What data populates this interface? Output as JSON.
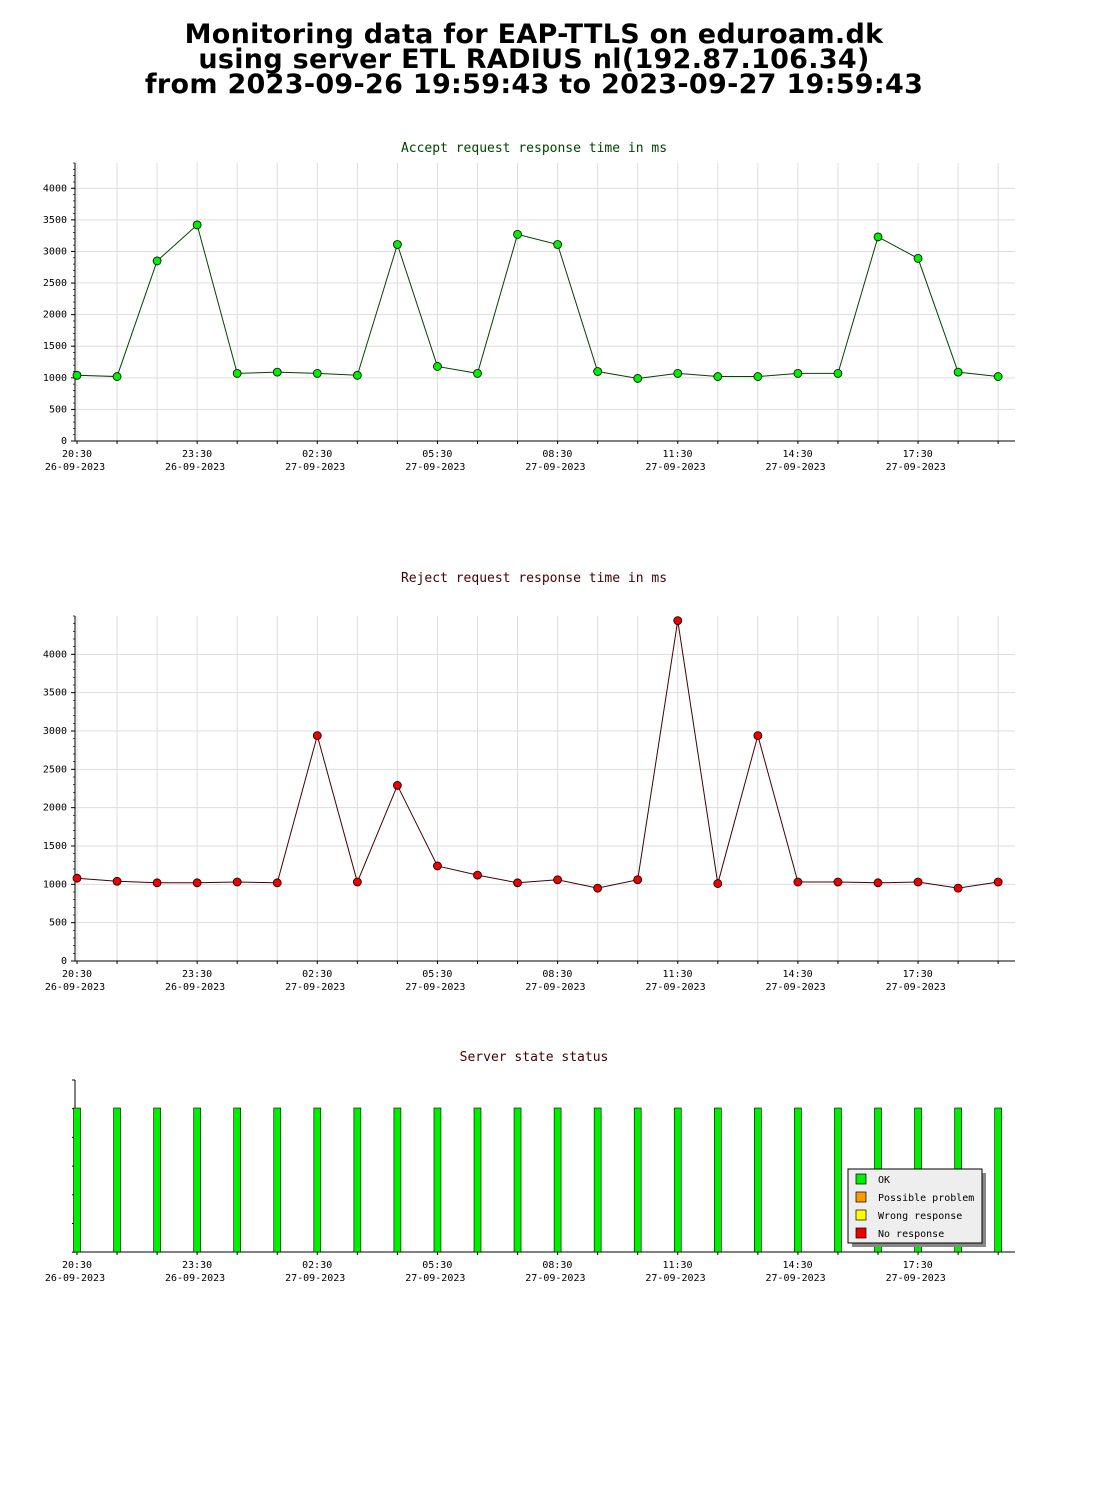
{
  "header": {
    "line1": "Monitoring data for EAP-TTLS on eduroam.dk",
    "line2": "using server ETL RADIUS nl(192.87.106.34)",
    "line3": "from 2023-09-26 19:59:43 to 2023-09-27 19:59:43"
  },
  "colors": {
    "accept_point": "#00ee00",
    "accept_line": "#004400",
    "reject_point": "#ee0000",
    "reject_line": "#440000",
    "grid": "#dddddd",
    "status_ok": "#00ee00",
    "status_possible": "#ff9900",
    "status_wrong": "#ffff00",
    "status_none": "#ee0000"
  },
  "chart_data": [
    {
      "type": "line",
      "title": "Accept request response time in ms",
      "title_color": "#004400",
      "xlabel": "",
      "ylabel": "",
      "ylim": [
        0,
        4400
      ],
      "yticks": [
        0,
        500,
        1000,
        1500,
        2000,
        2500,
        3000,
        3500,
        4000
      ],
      "x_tick_labels": [
        {
          "time": "20:30",
          "date": "26-09-2023"
        },
        {
          "time": "23:30",
          "date": "26-09-2023"
        },
        {
          "time": "02:30",
          "date": "27-09-2023"
        },
        {
          "time": "05:30",
          "date": "27-09-2023"
        },
        {
          "time": "08:30",
          "date": "27-09-2023"
        },
        {
          "time": "11:30",
          "date": "27-09-2023"
        },
        {
          "time": "14:30",
          "date": "27-09-2023"
        },
        {
          "time": "17:30",
          "date": "27-09-2023"
        }
      ],
      "grid": true,
      "series": [
        {
          "values": [
            1040,
            1020,
            2850,
            3420,
            1070,
            1090,
            1070,
            1040,
            3110,
            1180,
            1070,
            3270,
            3110,
            1100,
            990,
            1070,
            1020,
            1020,
            1070,
            1070,
            3230,
            2890,
            1090,
            1020
          ]
        }
      ]
    },
    {
      "type": "line",
      "title": "Reject request response time in ms",
      "title_color": "#440000",
      "xlabel": "",
      "ylabel": "",
      "ylim": [
        0,
        4500
      ],
      "yticks": [
        0,
        500,
        1000,
        1500,
        2000,
        2500,
        3000,
        3500,
        4000
      ],
      "x_tick_labels": [
        {
          "time": "20:30",
          "date": "26-09-2023"
        },
        {
          "time": "23:30",
          "date": "26-09-2023"
        },
        {
          "time": "02:30",
          "date": "27-09-2023"
        },
        {
          "time": "05:30",
          "date": "27-09-2023"
        },
        {
          "time": "08:30",
          "date": "27-09-2023"
        },
        {
          "time": "11:30",
          "date": "27-09-2023"
        },
        {
          "time": "14:30",
          "date": "27-09-2023"
        },
        {
          "time": "17:30",
          "date": "27-09-2023"
        }
      ],
      "grid": true,
      "series": [
        {
          "values": [
            1080,
            1040,
            1020,
            1020,
            1030,
            1020,
            2940,
            1030,
            2290,
            1240,
            1120,
            1020,
            1060,
            950,
            1060,
            4440,
            1010,
            2940,
            1030,
            1030,
            1020,
            1030,
            950,
            1030
          ]
        }
      ]
    },
    {
      "type": "bar",
      "title": "Server state status",
      "title_color": "#440000",
      "xlabel": "",
      "ylabel": "",
      "x_tick_labels": [
        {
          "time": "20:30",
          "date": "26-09-2023"
        },
        {
          "time": "23:30",
          "date": "26-09-2023"
        },
        {
          "time": "02:30",
          "date": "27-09-2023"
        },
        {
          "time": "05:30",
          "date": "27-09-2023"
        },
        {
          "time": "08:30",
          "date": "27-09-2023"
        },
        {
          "time": "11:30",
          "date": "27-09-2023"
        },
        {
          "time": "14:30",
          "date": "27-09-2023"
        },
        {
          "time": "17:30",
          "date": "27-09-2023"
        }
      ],
      "states": [
        "OK",
        "OK",
        "OK",
        "OK",
        "OK",
        "OK",
        "OK",
        "OK",
        "OK",
        "OK",
        "OK",
        "OK",
        "OK",
        "OK",
        "OK",
        "OK",
        "OK",
        "OK",
        "OK",
        "OK",
        "OK",
        "OK",
        "OK",
        "OK"
      ],
      "legend": {
        "placement": "bottom-right",
        "entries": [
          {
            "label": "OK",
            "color": "#00ee00"
          },
          {
            "label": "Possible problem",
            "color": "#ff9900"
          },
          {
            "label": "Wrong response",
            "color": "#ffff00"
          },
          {
            "label": "No response",
            "color": "#ee0000"
          }
        ]
      }
    }
  ]
}
